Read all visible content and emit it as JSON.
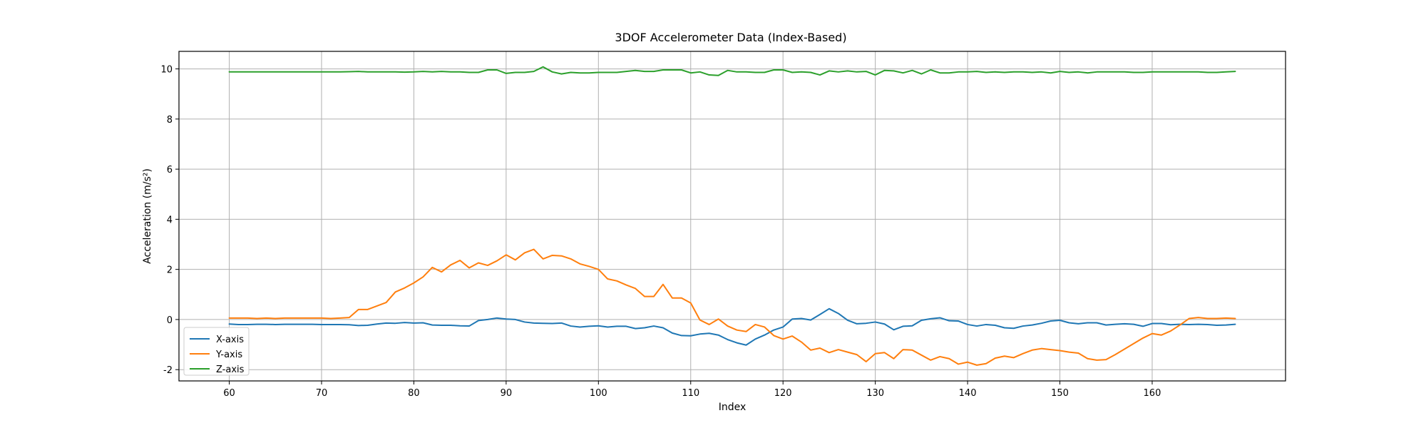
{
  "chart_data": {
    "type": "line",
    "title": "3DOF Accelerometer Data (Index-Based)",
    "xlabel": "Index",
    "ylabel": "Acceleration (m/s²)",
    "xlim": [
      54.55,
      174.45
    ],
    "ylim": [
      -2.45,
      10.7
    ],
    "xticks": [
      60,
      70,
      80,
      90,
      100,
      110,
      120,
      130,
      140,
      150,
      160
    ],
    "yticks": [
      -2,
      0,
      2,
      4,
      6,
      8,
      10
    ],
    "grid": true,
    "legend_position": "lower-left",
    "x_start": 60,
    "series": [
      {
        "name": "X-axis",
        "color": "#1f77b4",
        "values": [
          -0.18,
          -0.2,
          -0.2,
          -0.19,
          -0.19,
          -0.2,
          -0.19,
          -0.19,
          -0.19,
          -0.19,
          -0.2,
          -0.2,
          -0.2,
          -0.21,
          -0.24,
          -0.23,
          -0.18,
          -0.14,
          -0.15,
          -0.12,
          -0.14,
          -0.13,
          -0.22,
          -0.23,
          -0.23,
          -0.25,
          -0.26,
          -0.04,
          0.0,
          0.06,
          0.02,
          0.0,
          -0.1,
          -0.14,
          -0.15,
          -0.16,
          -0.14,
          -0.26,
          -0.3,
          -0.27,
          -0.25,
          -0.3,
          -0.27,
          -0.27,
          -0.36,
          -0.33,
          -0.26,
          -0.33,
          -0.54,
          -0.64,
          -0.65,
          -0.58,
          -0.55,
          -0.62,
          -0.8,
          -0.93,
          -1.02,
          -0.78,
          -0.62,
          -0.42,
          -0.3,
          0.02,
          0.04,
          -0.02,
          0.2,
          0.43,
          0.24,
          -0.03,
          -0.17,
          -0.15,
          -0.1,
          -0.18,
          -0.41,
          -0.27,
          -0.25,
          -0.03,
          0.03,
          0.07,
          -0.05,
          -0.06,
          -0.2,
          -0.26,
          -0.2,
          -0.23,
          -0.33,
          -0.35,
          -0.26,
          -0.22,
          -0.15,
          -0.06,
          -0.03,
          -0.13,
          -0.17,
          -0.13,
          -0.13,
          -0.22,
          -0.19,
          -0.17,
          -0.19,
          -0.27,
          -0.16,
          -0.16,
          -0.21,
          -0.19,
          -0.2,
          -0.19,
          -0.2,
          -0.23,
          -0.22,
          -0.19
        ]
      },
      {
        "name": "Y-axis",
        "color": "#ff7f0e",
        "values": [
          0.06,
          0.06,
          0.06,
          0.04,
          0.06,
          0.04,
          0.06,
          0.06,
          0.06,
          0.06,
          0.06,
          0.04,
          0.06,
          0.08,
          0.4,
          0.4,
          0.54,
          0.68,
          1.1,
          1.26,
          1.46,
          1.7,
          2.08,
          1.9,
          2.18,
          2.36,
          2.06,
          2.26,
          2.16,
          2.34,
          2.58,
          2.38,
          2.66,
          2.8,
          2.42,
          2.56,
          2.54,
          2.42,
          2.22,
          2.12,
          2.0,
          1.62,
          1.54,
          1.38,
          1.24,
          0.92,
          0.92,
          1.4,
          0.86,
          0.86,
          0.66,
          -0.02,
          -0.2,
          0.02,
          -0.26,
          -0.42,
          -0.48,
          -0.2,
          -0.3,
          -0.64,
          -0.78,
          -0.66,
          -0.9,
          -1.22,
          -1.14,
          -1.32,
          -1.2,
          -1.3,
          -1.4,
          -1.68,
          -1.36,
          -1.32,
          -1.56,
          -1.2,
          -1.22,
          -1.42,
          -1.62,
          -1.48,
          -1.56,
          -1.78,
          -1.7,
          -1.82,
          -1.76,
          -1.54,
          -1.46,
          -1.52,
          -1.36,
          -1.22,
          -1.16,
          -1.2,
          -1.24,
          -1.3,
          -1.34,
          -1.56,
          -1.62,
          -1.6,
          -1.4,
          -1.18,
          -0.96,
          -0.74,
          -0.56,
          -0.62,
          -0.46,
          -0.22,
          0.04,
          0.08,
          0.04,
          0.04,
          0.06,
          0.04
        ]
      },
      {
        "name": "Z-axis",
        "color": "#2ca02c",
        "values": [
          9.88,
          9.88,
          9.88,
          9.88,
          9.88,
          9.88,
          9.88,
          9.88,
          9.88,
          9.88,
          9.88,
          9.88,
          9.88,
          9.89,
          9.9,
          9.88,
          9.88,
          9.88,
          9.88,
          9.87,
          9.88,
          9.9,
          9.88,
          9.9,
          9.88,
          9.88,
          9.86,
          9.86,
          9.96,
          9.96,
          9.82,
          9.86,
          9.86,
          9.9,
          10.08,
          9.88,
          9.8,
          9.86,
          9.84,
          9.84,
          9.86,
          9.86,
          9.86,
          9.9,
          9.94,
          9.9,
          9.9,
          9.96,
          9.96,
          9.96,
          9.84,
          9.88,
          9.76,
          9.74,
          9.94,
          9.88,
          9.88,
          9.86,
          9.86,
          9.96,
          9.96,
          9.86,
          9.88,
          9.86,
          9.76,
          9.92,
          9.88,
          9.92,
          9.88,
          9.9,
          9.76,
          9.94,
          9.92,
          9.84,
          9.94,
          9.8,
          9.96,
          9.84,
          9.84,
          9.88,
          9.88,
          9.9,
          9.86,
          9.88,
          9.86,
          9.88,
          9.88,
          9.86,
          9.88,
          9.84,
          9.9,
          9.86,
          9.88,
          9.84,
          9.88,
          9.88,
          9.88,
          9.88,
          9.86,
          9.86,
          9.88,
          9.88,
          9.88,
          9.88,
          9.88,
          9.88,
          9.86,
          9.86,
          9.88,
          9.9
        ]
      }
    ]
  }
}
